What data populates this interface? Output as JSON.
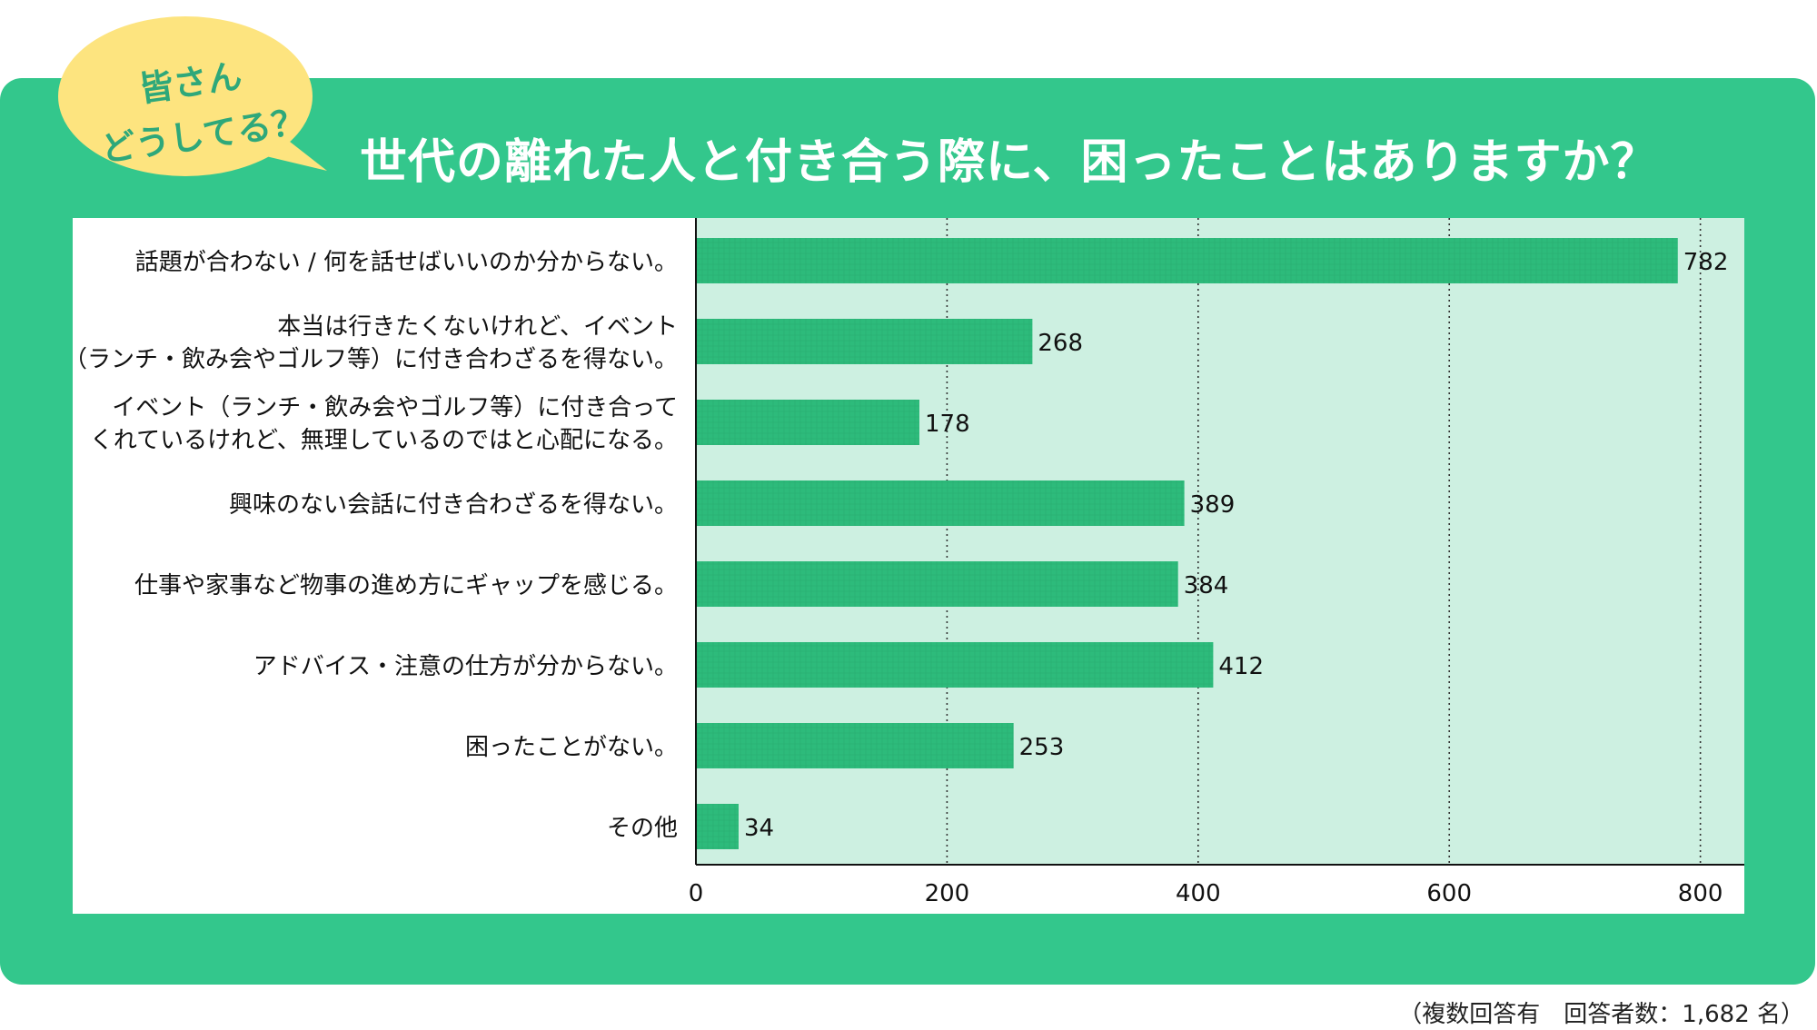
{
  "header": {
    "bubble_line1": "皆さん",
    "bubble_line2": "どうしてる？",
    "title": "世代の離れた人と付き合う際に、困ったことはありますか？"
  },
  "footnote": "（複数回答有　回答者数：1,682 名）",
  "colors": {
    "panel": "#33c78c",
    "bubble": "#fde47f",
    "bar": "#2dbb7b",
    "plot_bg": "#cdf0e1"
  },
  "chart_data": {
    "type": "bar",
    "orientation": "horizontal",
    "categories": [
      [
        "話題が合わない / 何を話せばいいのか分からない。"
      ],
      [
        "本当は行きたくないけれど、イベント",
        "（ランチ・飲み会やゴルフ等）に付き合わざるを得ない。"
      ],
      [
        "イベント（ランチ・飲み会やゴルフ等）に付き合って",
        "くれているけれど、無理しているのではと心配になる。"
      ],
      [
        "興味のない会話に付き合わざるを得ない。"
      ],
      [
        "仕事や家事など物事の進め方にギャップを感じる。"
      ],
      [
        "アドバイス・注意の仕方が分からない。"
      ],
      [
        "困ったことがない。"
      ],
      [
        "その他"
      ]
    ],
    "values": [
      782,
      268,
      178,
      389,
      384,
      412,
      253,
      34
    ],
    "xlim": [
      0,
      835
    ],
    "xticks": [
      0,
      200,
      400,
      600,
      800
    ],
    "grid": "vertical-dotted"
  }
}
